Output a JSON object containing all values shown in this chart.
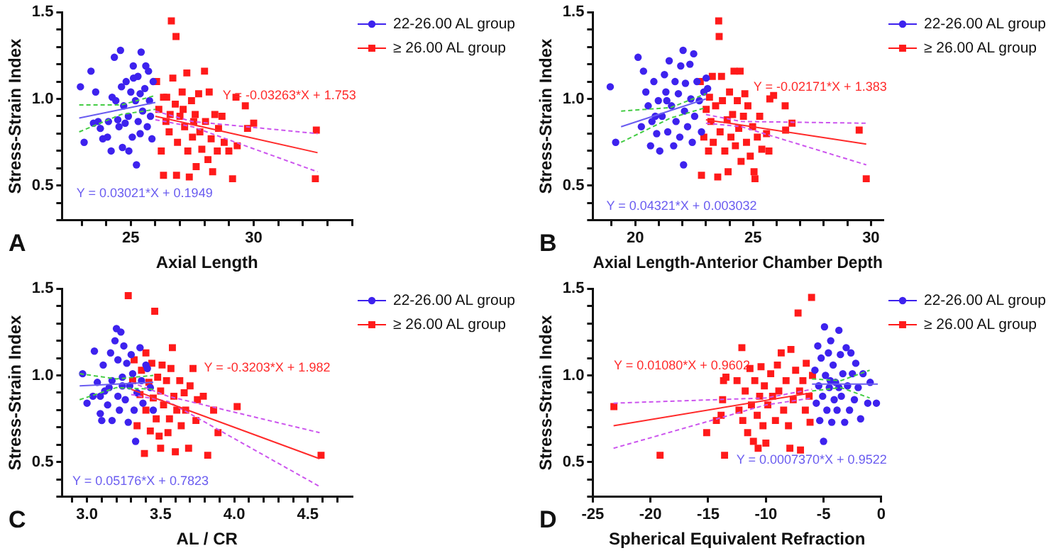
{
  "chart_data": [
    {
      "type": "scatter",
      "xlabel": "Axial Length",
      "ylabel": "Stress-Strain Index",
      "legend": "top right",
      "xlim": [
        22.2,
        34
      ],
      "xticks": [
        {
          "value": 23,
          "label": null
        },
        {
          "value": 24,
          "label": null
        },
        25,
        {
          "value": 26,
          "label": null
        },
        {
          "value": 27,
          "label": null
        },
        {
          "value": 28,
          "label": null
        },
        {
          "value": 29,
          "label": null
        },
        30,
        {
          "value": 31,
          "label": null
        },
        {
          "value": 32,
          "label": null
        },
        {
          "value": 33,
          "label": null
        },
        {
          "value": 34,
          "label": null
        }
      ],
      "ylim": [
        0.3,
        1.5
      ],
      "yticks": [
        {
          "value": 0.3,
          "label": null
        },
        {
          "value": 0.4,
          "label": null
        },
        {
          "value": 0.5,
          "label": "0.5"
        },
        {
          "value": 0.6,
          "label": null
        },
        {
          "value": 0.7,
          "label": null
        },
        {
          "value": 0.8,
          "label": null
        },
        {
          "value": 0.9,
          "label": null
        },
        {
          "value": 1.0,
          "label": "1.0"
        },
        {
          "value": 1.1,
          "label": null
        },
        {
          "value": 1.2,
          "label": null
        },
        {
          "value": 1.3,
          "label": null
        },
        {
          "value": 1.4,
          "label": null
        },
        {
          "value": 1.5,
          "label": "1.5"
        }
      ],
      "series": [
        {
          "name": "22-26.00 AL group",
          "color": "#3d22ee",
          "marker": "circle",
          "x": [
            22.95,
            23.1,
            23.38,
            23.57,
            23.48,
            23.76,
            23.86,
            24.05,
            24.2,
            24.24,
            24.33,
            24.52,
            24.58,
            24.66,
            24.71,
            24.81,
            24.9,
            25.0,
            25.06,
            25.1,
            25.19,
            25.23,
            25.29,
            25.38,
            25.42,
            25.48,
            25.57,
            25.61,
            25.67,
            25.72,
            25.76,
            25.86,
            25.91,
            24.47,
            24.77,
            25.3,
            24.39,
            24.62,
            24.09,
            23.67,
            25.38,
            24.92,
            25.8,
            25.11
          ],
          "values": [
            1.07,
            0.75,
            1.16,
            1.04,
            0.86,
            0.83,
            0.77,
            0.78,
            0.7,
            1.01,
            1.24,
            0.84,
            1.28,
            0.72,
            0.96,
            1.1,
            0.9,
            1.04,
            0.78,
            1.19,
            0.99,
            0.62,
            1.13,
            0.8,
            1.27,
            0.93,
            1.06,
            1.19,
            0.84,
            1.16,
            0.99,
            0.77,
            1.1,
            0.88,
            0.86,
            0.87,
            0.99,
            1.07,
            0.87,
            0.87,
            1.03,
            0.7,
            0.9,
            1.12
          ]
        },
        {
          "name": "≥ 26.00 AL group",
          "color": "#ff1a1a",
          "marker": "square",
          "x": [
            26.05,
            26.14,
            26.24,
            26.33,
            26.43,
            26.46,
            26.56,
            26.65,
            26.71,
            26.81,
            26.84,
            26.86,
            26.9,
            27.0,
            27.09,
            27.19,
            27.28,
            27.32,
            27.38,
            27.47,
            27.51,
            27.62,
            27.66,
            27.76,
            27.81,
            27.89,
            28.0,
            28.04,
            28.14,
            28.19,
            28.27,
            28.33,
            28.42,
            28.52,
            28.57,
            28.71,
            28.8,
            28.99,
            29.14,
            29.28,
            29.33,
            29.66,
            29.75,
            30.0,
            32.55,
            32.51,
            26.33,
            26.6,
            27.13,
            27.56
          ],
          "values": [
            1.1,
            0.94,
            0.7,
            0.56,
            0.87,
            1.01,
            0.81,
            1.45,
            1.12,
            0.97,
            1.36,
            0.56,
            0.75,
            0.9,
            1.04,
            0.84,
            1.15,
            0.7,
            0.55,
            0.99,
            0.78,
            0.91,
            0.61,
            1.03,
            0.81,
            0.71,
            1.16,
            0.87,
            0.65,
            1.04,
            0.77,
            0.58,
            0.91,
            0.7,
            0.83,
            0.9,
            0.75,
            0.7,
            0.54,
            1.01,
            0.73,
            0.96,
            0.83,
            0.86,
            0.82,
            0.54,
            1.01,
            0.91,
            0.94,
            0.87
          ]
        },
        {
          "type": "line",
          "name": "Y = 0.03021*X + 0.1949",
          "color": "#6a5cf0",
          "x": [
            22.9,
            26
          ],
          "values": [
            0.89,
            0.98
          ]
        },
        {
          "type": "line",
          "color": "#44cc44",
          "line_style": "dashed",
          "x": [
            22.9,
            24.6,
            26
          ],
          "values": [
            0.965,
            0.965,
            1.02
          ]
        },
        {
          "type": "line",
          "color": "#44cc44",
          "line_style": "dashed",
          "x": [
            22.9,
            24.6,
            26
          ],
          "values": [
            0.81,
            0.91,
            0.94
          ]
        },
        {
          "type": "line",
          "name": "Y = -0.03263*X + 1.753",
          "color": "#ff2a2a",
          "x": [
            26,
            32.6
          ],
          "values": [
            0.9,
            0.69
          ]
        },
        {
          "type": "line",
          "color": "#cc55ee",
          "line_style": "dashed",
          "x": [
            26,
            27.5,
            32.6
          ],
          "values": [
            0.93,
            0.87,
            0.8
          ]
        },
        {
          "type": "line",
          "color": "#cc55ee",
          "line_style": "dashed",
          "x": [
            26,
            27.5,
            32.6
          ],
          "values": [
            0.88,
            0.84,
            0.58
          ]
        }
      ],
      "annotations": [
        "A"
      ]
    },
    {
      "type": "scatter",
      "xlabel": "Axial Length-Anterior Chamber Depth",
      "ylabel": "Stress-Strain Index",
      "legend": "top right",
      "xlim": [
        18.2,
        30.5
      ],
      "xticks": [
        {
          "value": 19,
          "label": null
        },
        20,
        {
          "value": 21,
          "label": null
        },
        {
          "value": 22,
          "label": null
        },
        {
          "value": 23,
          "label": null
        },
        {
          "value": 24,
          "label": null
        },
        25,
        {
          "value": 26,
          "label": null
        },
        {
          "value": 27,
          "label": null
        },
        {
          "value": 28,
          "label": null
        },
        {
          "value": 29,
          "label": null
        },
        30
      ],
      "ylim": [
        0.3,
        1.5
      ],
      "yticks": [
        {
          "value": 0.3,
          "label": null
        },
        {
          "value": 0.4,
          "label": null
        },
        {
          "value": 0.5,
          "label": "0.5"
        },
        {
          "value": 0.6,
          "label": null
        },
        {
          "value": 0.7,
          "label": null
        },
        {
          "value": 0.8,
          "label": null
        },
        {
          "value": 0.9,
          "label": null
        },
        {
          "value": 1.0,
          "label": "1.0"
        },
        {
          "value": 1.1,
          "label": null
        },
        {
          "value": 1.2,
          "label": null
        },
        {
          "value": 1.3,
          "label": null
        },
        {
          "value": 1.4,
          "label": null
        },
        {
          "value": 1.5,
          "label": "1.5"
        }
      ],
      "series": [
        {
          "name": "22-26.00 AL group",
          "color": "#3d22ee",
          "marker": "circle",
          "x": [
            18.94,
            19.17,
            20.12,
            20.26,
            20.35,
            20.45,
            20.55,
            20.65,
            20.71,
            20.79,
            20.91,
            20.98,
            21.04,
            21.14,
            21.24,
            21.3,
            21.38,
            21.44,
            21.54,
            21.63,
            21.69,
            21.73,
            21.83,
            21.89,
            21.93,
            22.03,
            22.05,
            22.09,
            22.13,
            22.22,
            22.32,
            22.36,
            22.42,
            22.48,
            22.52,
            22.62,
            22.72,
            22.81,
            22.91,
            23.01,
            23.07,
            20.85,
            21.34
          ],
          "values": [
            1.07,
            0.75,
            1.24,
            0.84,
            1.16,
            1.04,
            0.96,
            0.73,
            0.87,
            1.1,
            0.8,
            0.99,
            0.7,
            0.9,
            1.14,
            1.04,
            0.81,
            1.22,
            0.96,
            0.73,
            1.1,
            0.87,
            1.03,
            0.78,
            1.19,
            1.28,
            0.62,
            0.93,
            1.09,
            0.84,
            1.2,
            1.0,
            0.75,
            1.26,
            0.9,
            1.1,
            0.99,
            0.81,
            1.04,
            1.12,
            1.06,
            0.9,
            0.99
          ]
        },
        {
          "name": "≥ 26.00 AL group",
          "color": "#ff1a1a",
          "marker": "square",
          "x": [
            22.76,
            22.81,
            22.91,
            23.01,
            23.11,
            23.15,
            23.21,
            23.27,
            23.31,
            23.41,
            23.5,
            23.54,
            23.56,
            23.6,
            23.66,
            23.7,
            23.8,
            23.9,
            23.94,
            24.0,
            24.06,
            24.13,
            24.19,
            24.25,
            24.33,
            24.39,
            24.45,
            24.49,
            24.59,
            24.65,
            24.72,
            24.78,
            24.88,
            24.98,
            25.04,
            25.08,
            25.18,
            25.28,
            25.37,
            25.57,
            25.67,
            25.71,
            25.87,
            26.36,
            26.38,
            26.65,
            29.5,
            29.8
          ],
          "values": [
            1.1,
            0.56,
            0.78,
            0.94,
            0.7,
            1.01,
            0.87,
            1.13,
            0.75,
            0.96,
            0.55,
            1.45,
            1.36,
            0.81,
            1.13,
            0.99,
            0.7,
            0.88,
            0.58,
            1.04,
            0.78,
            0.91,
            1.16,
            0.73,
            0.99,
            0.83,
            1.16,
            0.64,
            0.9,
            1.03,
            0.75,
            0.96,
            0.67,
            0.84,
            0.58,
            0.54,
            0.78,
            0.9,
            0.71,
            0.8,
            0.7,
            1.0,
            1.02,
            0.96,
            0.82,
            0.86,
            0.82,
            0.54
          ]
        },
        {
          "type": "line",
          "name": "Y = 0.04321*X + 0.003032",
          "color": "#6a5cf0",
          "x": [
            19.4,
            23
          ],
          "values": [
            0.84,
            1.0
          ]
        },
        {
          "type": "line",
          "color": "#44cc44",
          "line_style": "dashed",
          "x": [
            19.4,
            21.5,
            23
          ],
          "values": [
            0.93,
            0.95,
            1.03
          ]
        },
        {
          "type": "line",
          "color": "#44cc44",
          "line_style": "dashed",
          "x": [
            19.4,
            21.5,
            23
          ],
          "values": [
            0.75,
            0.89,
            0.95
          ]
        },
        {
          "type": "line",
          "name": "Y = -0.02171*X + 1.383",
          "color": "#ff2a2a",
          "x": [
            23,
            29.8
          ],
          "values": [
            0.88,
            0.74
          ]
        },
        {
          "type": "line",
          "color": "#cc55ee",
          "line_style": "dashed",
          "x": [
            23,
            24.5,
            29.8
          ],
          "values": [
            0.91,
            0.87,
            0.86
          ]
        },
        {
          "type": "line",
          "color": "#cc55ee",
          "line_style": "dashed",
          "x": [
            23,
            24.5,
            29.8
          ],
          "values": [
            0.86,
            0.84,
            0.62
          ]
        }
      ],
      "annotations": [
        "B"
      ]
    },
    {
      "type": "scatter",
      "xlabel": "AL / CR",
      "ylabel": "Stress-Strain Index",
      "legend": "top right",
      "xlim": [
        2.83,
        4.8
      ],
      "xticks": [
        {
          "value": 2.9,
          "label": null
        },
        {
          "value": 3.0,
          "label": "3.0"
        },
        {
          "value": 3.1,
          "label": null
        },
        {
          "value": 3.2,
          "label": null
        },
        {
          "value": 3.3,
          "label": null
        },
        {
          "value": 3.4,
          "label": null
        },
        {
          "value": 3.5,
          "label": "3.5"
        },
        {
          "value": 3.6,
          "label": null
        },
        {
          "value": 3.7,
          "label": null
        },
        {
          "value": 3.8,
          "label": null
        },
        {
          "value": 3.9,
          "label": null
        },
        {
          "value": 4.0,
          "label": "4.0"
        },
        {
          "value": 4.1,
          "label": null
        },
        {
          "value": 4.2,
          "label": null
        },
        {
          "value": 4.3,
          "label": null
        },
        {
          "value": 4.4,
          "label": null
        },
        {
          "value": 4.5,
          "label": "4.5"
        },
        {
          "value": 4.6,
          "label": null
        },
        {
          "value": 4.7,
          "label": null
        }
      ],
      "ylim": [
        0.3,
        1.5
      ],
      "yticks": [
        {
          "value": 0.3,
          "label": null
        },
        {
          "value": 0.4,
          "label": null
        },
        {
          "value": 0.5,
          "label": "0.5"
        },
        {
          "value": 0.6,
          "label": null
        },
        {
          "value": 0.7,
          "label": null
        },
        {
          "value": 0.8,
          "label": null
        },
        {
          "value": 0.9,
          "label": null
        },
        {
          "value": 1.0,
          "label": "1.0"
        },
        {
          "value": 1.1,
          "label": null
        },
        {
          "value": 1.2,
          "label": null
        },
        {
          "value": 1.3,
          "label": null
        },
        {
          "value": 1.4,
          "label": null
        },
        {
          "value": 1.5,
          "label": "1.5"
        }
      ],
      "series": [
        {
          "name": "22-26.00 AL group",
          "color": "#3d22ee",
          "marker": "circle",
          "x": [
            2.97,
            3.0,
            3.04,
            3.05,
            3.07,
            3.09,
            3.1,
            3.11,
            3.12,
            3.14,
            3.16,
            3.17,
            3.17,
            3.19,
            3.2,
            3.21,
            3.21,
            3.22,
            3.23,
            3.24,
            3.25,
            3.26,
            3.27,
            3.28,
            3.29,
            3.3,
            3.31,
            3.32,
            3.33,
            3.34,
            3.36,
            3.37,
            3.38,
            3.4,
            3.41,
            3.43,
            3.45,
            3.09,
            3.15,
            3.24
          ],
          "values": [
            1.01,
            0.84,
            0.88,
            1.14,
            0.96,
            0.78,
            0.74,
            1.06,
            0.91,
            0.83,
            1.13,
            0.97,
            0.74,
            1.2,
            1.27,
            0.88,
            1.09,
            0.8,
            1.25,
            0.99,
            1.17,
            0.86,
            1.07,
            0.73,
            0.94,
            1.12,
            1.01,
            0.8,
            0.62,
            0.9,
            1.16,
            0.97,
            0.84,
            1.06,
            1.04,
            0.93,
            0.8,
            0.88,
            0.93,
            0.94
          ]
        },
        {
          "name": "≥ 26.00 AL group",
          "color": "#ff1a1a",
          "marker": "square",
          "x": [
            3.28,
            3.31,
            3.32,
            3.34,
            3.36,
            3.37,
            3.39,
            3.4,
            3.4,
            3.42,
            3.43,
            3.44,
            3.45,
            3.46,
            3.47,
            3.48,
            3.49,
            3.5,
            3.5,
            3.51,
            3.52,
            3.54,
            3.55,
            3.56,
            3.57,
            3.58,
            3.59,
            3.6,
            3.61,
            3.63,
            3.64,
            3.66,
            3.67,
            3.69,
            3.7,
            3.72,
            3.74,
            3.75,
            3.79,
            3.82,
            3.86,
            3.89,
            4.02,
            4.59
          ],
          "values": [
            1.46,
            0.97,
            1.09,
            0.71,
            0.89,
            1.03,
            0.55,
            1.13,
            0.8,
            0.96,
            0.68,
            1.07,
            0.87,
            1.37,
            0.75,
            0.99,
            0.65,
            0.91,
            0.58,
            1.06,
            0.83,
            0.97,
            0.67,
            0.75,
            1.04,
            1.16,
            0.88,
            0.56,
            0.8,
            0.97,
            0.71,
            0.9,
            0.8,
            0.58,
            0.94,
            1.04,
            0.74,
            0.86,
            0.88,
            0.54,
            0.8,
            0.67,
            0.82,
            0.54
          ]
        },
        {
          "type": "line",
          "name": "Y = 0.05176*X + 0.7823",
          "color": "#6a5cf0",
          "x": [
            2.95,
            3.45
          ],
          "values": [
            0.94,
            0.96
          ]
        },
        {
          "type": "line",
          "color": "#44cc44",
          "line_style": "dashed",
          "x": [
            2.95,
            3.2,
            3.45
          ],
          "values": [
            1.01,
            0.98,
            1.0
          ]
        },
        {
          "type": "line",
          "color": "#44cc44",
          "line_style": "dashed",
          "x": [
            2.95,
            3.2,
            3.45
          ],
          "values": [
            0.86,
            0.93,
            0.92
          ]
        },
        {
          "type": "line",
          "name": "Y = -0.3203*X + 1.982",
          "color": "#ff2a2a",
          "x": [
            3.3,
            4.58
          ],
          "values": [
            0.92,
            0.52
          ]
        },
        {
          "type": "line",
          "color": "#cc55ee",
          "line_style": "dashed",
          "x": [
            3.3,
            3.55,
            4.58
          ],
          "values": [
            0.96,
            0.88,
            0.67
          ]
        },
        {
          "type": "line",
          "color": "#cc55ee",
          "line_style": "dashed",
          "x": [
            3.3,
            3.55,
            4.58
          ],
          "values": [
            0.89,
            0.85,
            0.36
          ]
        }
      ],
      "annotations": [
        "C"
      ]
    },
    {
      "type": "scatter",
      "xlabel": "Spherical Equivalent Refraction",
      "ylabel": "Stress-Strain Index",
      "legend": "top right",
      "xlim": [
        -25,
        0
      ],
      "xticks": [
        -25,
        -20,
        -15,
        -10,
        -5,
        0
      ],
      "ylim": [
        0.3,
        1.5
      ],
      "yticks": [
        {
          "value": 0.3,
          "label": null
        },
        {
          "value": 0.4,
          "label": null
        },
        {
          "value": 0.5,
          "label": "0.5"
        },
        {
          "value": 0.6,
          "label": null
        },
        {
          "value": 0.7,
          "label": null
        },
        {
          "value": 0.8,
          "label": null
        },
        {
          "value": 0.9,
          "label": null
        },
        {
          "value": 1.0,
          "label": "1.0"
        },
        {
          "value": 1.1,
          "label": null
        },
        {
          "value": 1.2,
          "label": null
        },
        {
          "value": 1.3,
          "label": null
        },
        {
          "value": 1.4,
          "label": null
        },
        {
          "value": 1.5,
          "label": "1.5"
        }
      ],
      "series": [
        {
          "name": "22-26.00 AL group",
          "color": "#3d22ee",
          "marker": "circle",
          "x": [
            -5.75,
            -5.63,
            -5.5,
            -5.42,
            -5.33,
            -5.21,
            -5.08,
            -5.0,
            -4.92,
            -4.83,
            -4.71,
            -4.58,
            -4.5,
            -4.38,
            -4.29,
            -4.17,
            -4.08,
            -3.96,
            -3.83,
            -3.67,
            -3.54,
            -3.46,
            -3.33,
            -3.17,
            -3.04,
            -2.92,
            -2.75,
            -2.63,
            -2.5,
            -2.33,
            -2.21,
            -2.0,
            -1.79,
            -1.58,
            -1.17,
            -0.96,
            -0.42,
            -3.67,
            -4.42
          ],
          "values": [
            1.03,
            0.84,
            1.17,
            0.94,
            0.74,
            1.1,
            0.88,
            0.62,
            1.28,
            1.0,
            0.8,
            1.13,
            0.93,
            1.2,
            0.73,
            1.06,
            0.86,
            0.96,
            0.8,
            1.26,
            1.12,
            0.88,
            1.01,
            0.73,
            1.16,
            0.94,
            0.8,
            1.13,
            1.01,
            0.86,
            1.07,
            0.93,
            0.75,
            1.01,
            0.84,
            0.96,
            0.84,
            0.93,
            0.97
          ]
        },
        {
          "name": "≥ 26.00 AL group",
          "color": "#ff1a1a",
          "marker": "square",
          "x": [
            -23.17,
            -19.17,
            -15.13,
            -14.29,
            -13.88,
            -13.75,
            -13.67,
            -13.58,
            -13.46,
            -12.5,
            -12.33,
            -12.08,
            -12.0,
            -11.79,
            -11.58,
            -11.38,
            -11.25,
            -11.08,
            -10.96,
            -10.75,
            -10.67,
            -10.54,
            -10.42,
            -10.25,
            -10.13,
            -10.0,
            -9.83,
            -9.58,
            -9.42,
            -9.17,
            -9.0,
            -8.88,
            -8.67,
            -8.46,
            -8.25,
            -8.04,
            -7.92,
            -7.83,
            -7.63,
            -7.42,
            -7.21,
            -7.08,
            -7.0,
            -6.79,
            -6.58,
            -6.5,
            -6.25,
            -6.04,
            -5.96,
            -6.17
          ],
          "values": [
            0.82,
            0.54,
            0.67,
            0.74,
            0.77,
            0.86,
            0.97,
            0.54,
            0.99,
            0.97,
            0.8,
            1.16,
            0.74,
            0.91,
            0.67,
            1.04,
            0.83,
            0.62,
            0.97,
            0.77,
            0.58,
            0.88,
            1.05,
            0.71,
            0.94,
            0.61,
            0.83,
            1.01,
            0.88,
            0.74,
            1.06,
            0.91,
            1.13,
            0.8,
            0.97,
            0.71,
            0.58,
            1.15,
            0.86,
            1.03,
            1.36,
            0.91,
            0.57,
            0.97,
            0.8,
            1.07,
            0.88,
            1.45,
            1.0,
            0.73
          ]
        },
        {
          "type": "line",
          "name": "Y = 0.0007370*X + 0.9522",
          "color": "#6a5cf0",
          "x": [
            -6,
            -0.3
          ],
          "values": [
            0.95,
            0.95
          ]
        },
        {
          "type": "line",
          "color": "#44cc44",
          "line_style": "dashed",
          "x": [
            -6,
            -3.5,
            -1
          ],
          "values": [
            0.98,
            0.97,
            1.03
          ]
        },
        {
          "type": "line",
          "color": "#44cc44",
          "line_style": "dashed",
          "x": [
            -6,
            -3.5,
            -1
          ],
          "values": [
            0.91,
            0.93,
            0.87
          ]
        },
        {
          "type": "line",
          "name": "Y = 0.01080*X + 0.9602",
          "color": "#ff2a2a",
          "x": [
            -23.2,
            -6
          ],
          "values": [
            0.71,
            0.9
          ]
        },
        {
          "type": "line",
          "color": "#cc55ee",
          "line_style": "dashed",
          "x": [
            -23.2,
            -10,
            -6
          ],
          "values": [
            0.84,
            0.87,
            0.92
          ]
        },
        {
          "type": "line",
          "color": "#cc55ee",
          "line_style": "dashed",
          "x": [
            -23.2,
            -10,
            -6
          ],
          "values": [
            0.58,
            0.83,
            0.87
          ]
        }
      ],
      "annotations": [
        "D"
      ]
    }
  ]
}
